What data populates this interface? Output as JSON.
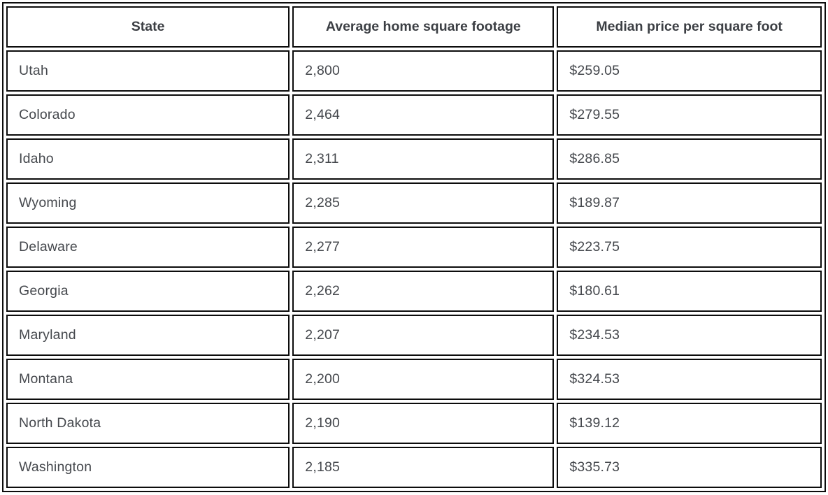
{
  "colors": {
    "border": "#0c0c0c",
    "body_text": "#45484d",
    "header_text": "#3c3f44",
    "background": "#ffffff"
  },
  "table": {
    "columns": [
      {
        "label": "State"
      },
      {
        "label": "Average home square footage"
      },
      {
        "label": "Median price per square foot"
      }
    ],
    "rows": [
      {
        "state": "Utah",
        "sqft": "2,800",
        "price": "$259.05"
      },
      {
        "state": "Colorado",
        "sqft": "2,464",
        "price": "$279.55"
      },
      {
        "state": "Idaho",
        "sqft": "2,311",
        "price": "$286.85"
      },
      {
        "state": "Wyoming",
        "sqft": "2,285",
        "price": "$189.87"
      },
      {
        "state": "Delaware",
        "sqft": "2,277",
        "price": "$223.75"
      },
      {
        "state": "Georgia",
        "sqft": "2,262",
        "price": "$180.61"
      },
      {
        "state": "Maryland",
        "sqft": "2,207",
        "price": "$234.53"
      },
      {
        "state": "Montana",
        "sqft": "2,200",
        "price": "$324.53"
      },
      {
        "state": "North Dakota",
        "sqft": "2,190",
        "price": "$139.12"
      },
      {
        "state": "Washington",
        "sqft": "2,185",
        "price": "$335.73"
      }
    ]
  },
  "chart_data": {
    "type": "table",
    "title": "",
    "columns": [
      "State",
      "Average home square footage",
      "Median price per square foot"
    ],
    "rows": [
      [
        "Utah",
        2800,
        259.05
      ],
      [
        "Colorado",
        2464,
        279.55
      ],
      [
        "Idaho",
        2311,
        286.85
      ],
      [
        "Wyoming",
        2285,
        189.87
      ],
      [
        "Delaware",
        2277,
        223.75
      ],
      [
        "Georgia",
        2262,
        180.61
      ],
      [
        "Maryland",
        2207,
        234.53
      ],
      [
        "Montana",
        2200,
        324.53
      ],
      [
        "North Dakota",
        2190,
        139.12
      ],
      [
        "Washington",
        2185,
        335.73
      ]
    ]
  }
}
